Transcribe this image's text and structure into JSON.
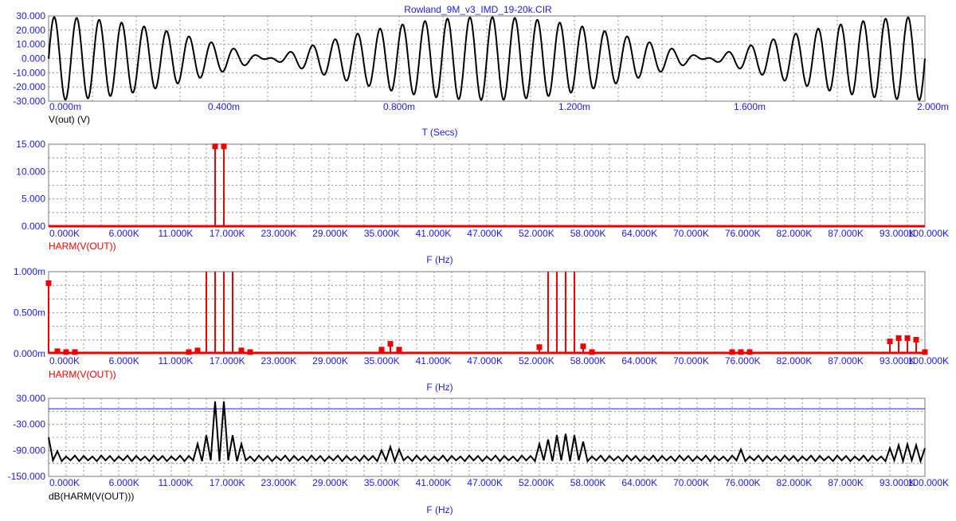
{
  "title": "Rowland_9M_v3_IMD_19-20k.CIR",
  "colors": {
    "text": "#1a1ae6",
    "grid": "#7a7a7a",
    "trace_black": "#000000",
    "trace_red": "#ee0000",
    "ref_line": "#1a1ae6"
  },
  "freq_ticks": [
    "0.000K",
    "6.000K",
    "11.000K",
    "17.000K",
    "23.000K",
    "29.000K",
    "35.000K",
    "41.000K",
    "47.000K",
    "52.000K",
    "58.000K",
    "64.000K",
    "70.000K",
    "76.000K",
    "82.000K",
    "87.000K",
    "93.000K",
    "100.000K"
  ],
  "chart_data": [
    {
      "type": "line",
      "trace_label": "V(out) (V)",
      "xlabel": "T (Secs)",
      "xlim": [
        0,
        0.002
      ],
      "ylim": [
        -30,
        30
      ],
      "x_ticks": [
        "0.000m",
        "0.400m",
        "0.800m",
        "1.200m",
        "1.600m",
        "2.000m"
      ],
      "y_ticks": [
        "30.000",
        "20.000",
        "10.000",
        "0.000",
        "-10.000",
        "-20.000",
        "-30.000"
      ],
      "signal": {
        "components_hz": [
          19000,
          20000
        ],
        "amplitude_each": 14.6,
        "period_s": 0.001
      }
    },
    {
      "type": "bar",
      "trace_label": "HARM(V(OUT))",
      "xlabel": "F (Hz)",
      "xlim": [
        0,
        100000
      ],
      "ylim": [
        0,
        15
      ],
      "y_ticks": [
        "15.000",
        "10.000",
        "5.000",
        "0.000"
      ],
      "points": [
        [
          19000,
          14.6
        ],
        [
          20000,
          14.6
        ]
      ],
      "floor": 0
    },
    {
      "type": "bar",
      "trace_label": "HARM(V(OUT))",
      "xlabel": "F (Hz)",
      "xlim": [
        0,
        100000
      ],
      "ylim": [
        0,
        1
      ],
      "y_ticks": [
        "1.000m",
        "0.500m",
        "0.000m"
      ],
      "points": [
        [
          0,
          0.86
        ],
        [
          1000,
          0.03
        ],
        [
          2000,
          0.02
        ],
        [
          3000,
          0.02
        ],
        [
          16000,
          0.02
        ],
        [
          17000,
          0.04
        ],
        [
          18000,
          1.0
        ],
        [
          19000,
          1.0
        ],
        [
          20000,
          1.0
        ],
        [
          21000,
          1.0
        ],
        [
          22000,
          0.04
        ],
        [
          23000,
          0.02
        ],
        [
          38000,
          0.05
        ],
        [
          39000,
          0.12
        ],
        [
          40000,
          0.05
        ],
        [
          56000,
          0.08
        ],
        [
          57000,
          1.0
        ],
        [
          58000,
          1.0
        ],
        [
          59000,
          1.0
        ],
        [
          60000,
          1.0
        ],
        [
          61000,
          0.09
        ],
        [
          62000,
          0.02
        ],
        [
          78000,
          0.02
        ],
        [
          79000,
          0.02
        ],
        [
          80000,
          0.02
        ],
        [
          96000,
          0.15
        ],
        [
          97000,
          0.19
        ],
        [
          98000,
          0.19
        ],
        [
          99000,
          0.17
        ],
        [
          100000,
          0.02
        ]
      ],
      "floor": 0.01
    },
    {
      "type": "line",
      "trace_label": "dB(HARM(V(OUT)))",
      "xlabel": "F (Hz)",
      "xlim": [
        0,
        100000
      ],
      "ylim": [
        -150,
        30
      ],
      "y_ticks": [
        "30.000",
        "-30.000",
        "-90.000",
        "-150.000"
      ],
      "reference_level": 6,
      "peaks_db": [
        [
          0,
          -60
        ],
        [
          1000,
          -92
        ],
        [
          19000,
          23
        ],
        [
          20000,
          23
        ],
        [
          18000,
          -55
        ],
        [
          21000,
          -55
        ],
        [
          17000,
          -75
        ],
        [
          22000,
          -75
        ],
        [
          39000,
          -82
        ],
        [
          40000,
          -88
        ],
        [
          38000,
          -90
        ],
        [
          57000,
          -65
        ],
        [
          58000,
          -55
        ],
        [
          59000,
          -52
        ],
        [
          60000,
          -55
        ],
        [
          61000,
          -70
        ],
        [
          56000,
          -75
        ],
        [
          79000,
          -88
        ],
        [
          96000,
          -85
        ],
        [
          97000,
          -78
        ],
        [
          98000,
          -76
        ],
        [
          99000,
          -78
        ],
        [
          100000,
          -85
        ]
      ],
      "floor_db_range": [
        -100,
        -112
      ]
    }
  ]
}
